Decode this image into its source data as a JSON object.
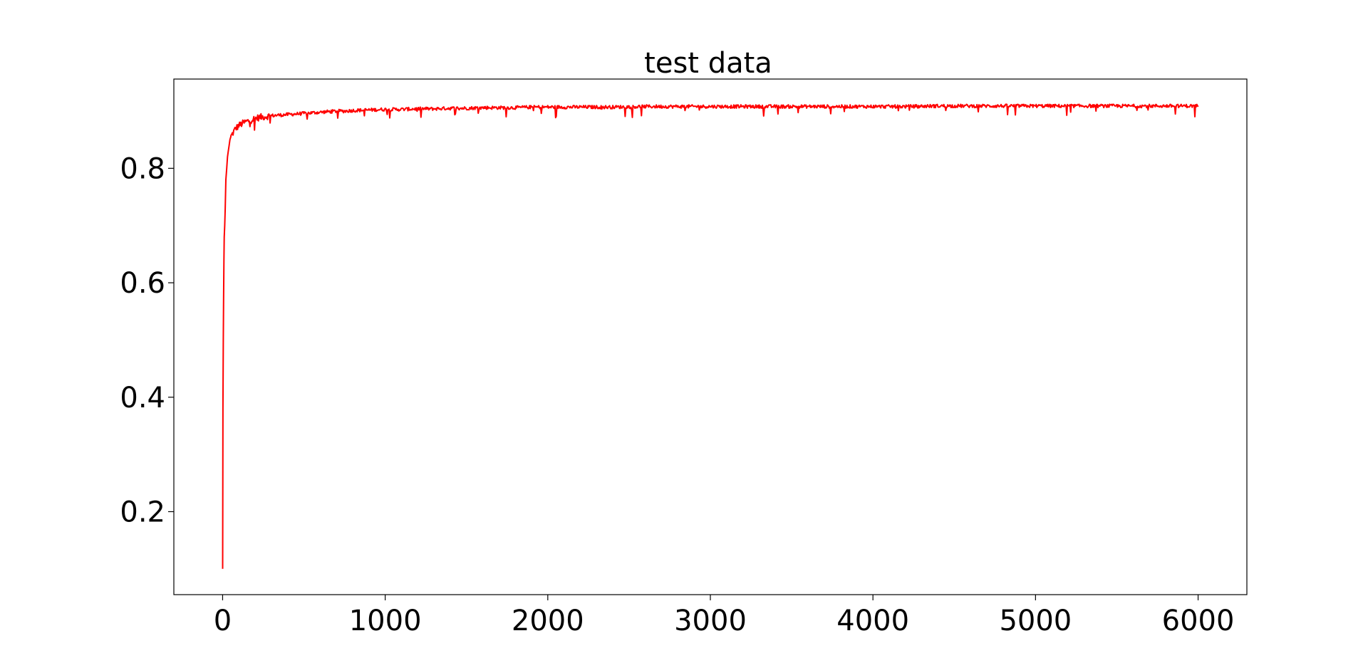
{
  "chart_data": {
    "type": "line",
    "title": "test data",
    "xlabel": "",
    "ylabel": "",
    "xlim": [
      -300,
      6300
    ],
    "ylim": [
      0.055,
      0.956
    ],
    "x_ticks": [
      0,
      1000,
      2000,
      3000,
      4000,
      5000,
      6000
    ],
    "x_tick_labels": [
      "0",
      "1000",
      "2000",
      "3000",
      "4000",
      "5000",
      "6000"
    ],
    "y_ticks": [
      0.2,
      0.4,
      0.6,
      0.8
    ],
    "y_tick_labels": [
      "0.2",
      "0.4",
      "0.6",
      "0.8"
    ],
    "grid": false,
    "legend": "none",
    "line_color": "#ff0000",
    "series": [
      {
        "x": [
          0,
          2,
          4,
          6,
          8,
          10,
          13,
          16,
          20,
          25,
          30,
          35,
          40,
          45,
          50,
          60,
          70,
          80,
          90,
          100,
          120,
          140,
          160,
          180,
          200,
          225,
          250,
          275,
          300,
          350,
          400,
          450,
          500,
          550,
          600,
          650,
          700,
          750,
          800,
          900,
          1000,
          1100,
          1200,
          1300,
          1400,
          1500,
          1600,
          1700,
          1800,
          1900,
          2000,
          2200,
          2400,
          2600,
          2800,
          3000,
          3200,
          3400,
          3600,
          3800,
          4000,
          4200,
          4400,
          4600,
          4800,
          5000,
          5200,
          5400,
          5600,
          5800,
          6000
        ],
        "values": [
          0.1,
          0.38,
          0.5,
          0.57,
          0.64,
          0.68,
          0.7,
          0.73,
          0.78,
          0.8,
          0.82,
          0.83,
          0.84,
          0.85,
          0.855,
          0.86,
          0.865,
          0.87,
          0.872,
          0.875,
          0.878,
          0.881,
          0.883,
          0.885,
          0.887,
          0.889,
          0.89,
          0.891,
          0.892,
          0.893,
          0.894,
          0.895,
          0.896,
          0.897,
          0.898,
          0.899,
          0.9,
          0.9,
          0.901,
          0.902,
          0.903,
          0.903,
          0.904,
          0.904,
          0.905,
          0.905,
          0.906,
          0.906,
          0.906,
          0.907,
          0.907,
          0.907,
          0.907,
          0.908,
          0.908,
          0.908,
          0.908,
          0.908,
          0.908,
          0.908,
          0.908,
          0.908,
          0.909,
          0.909,
          0.909,
          0.909,
          0.909,
          0.909,
          0.909,
          0.909,
          0.909
        ]
      }
    ]
  }
}
